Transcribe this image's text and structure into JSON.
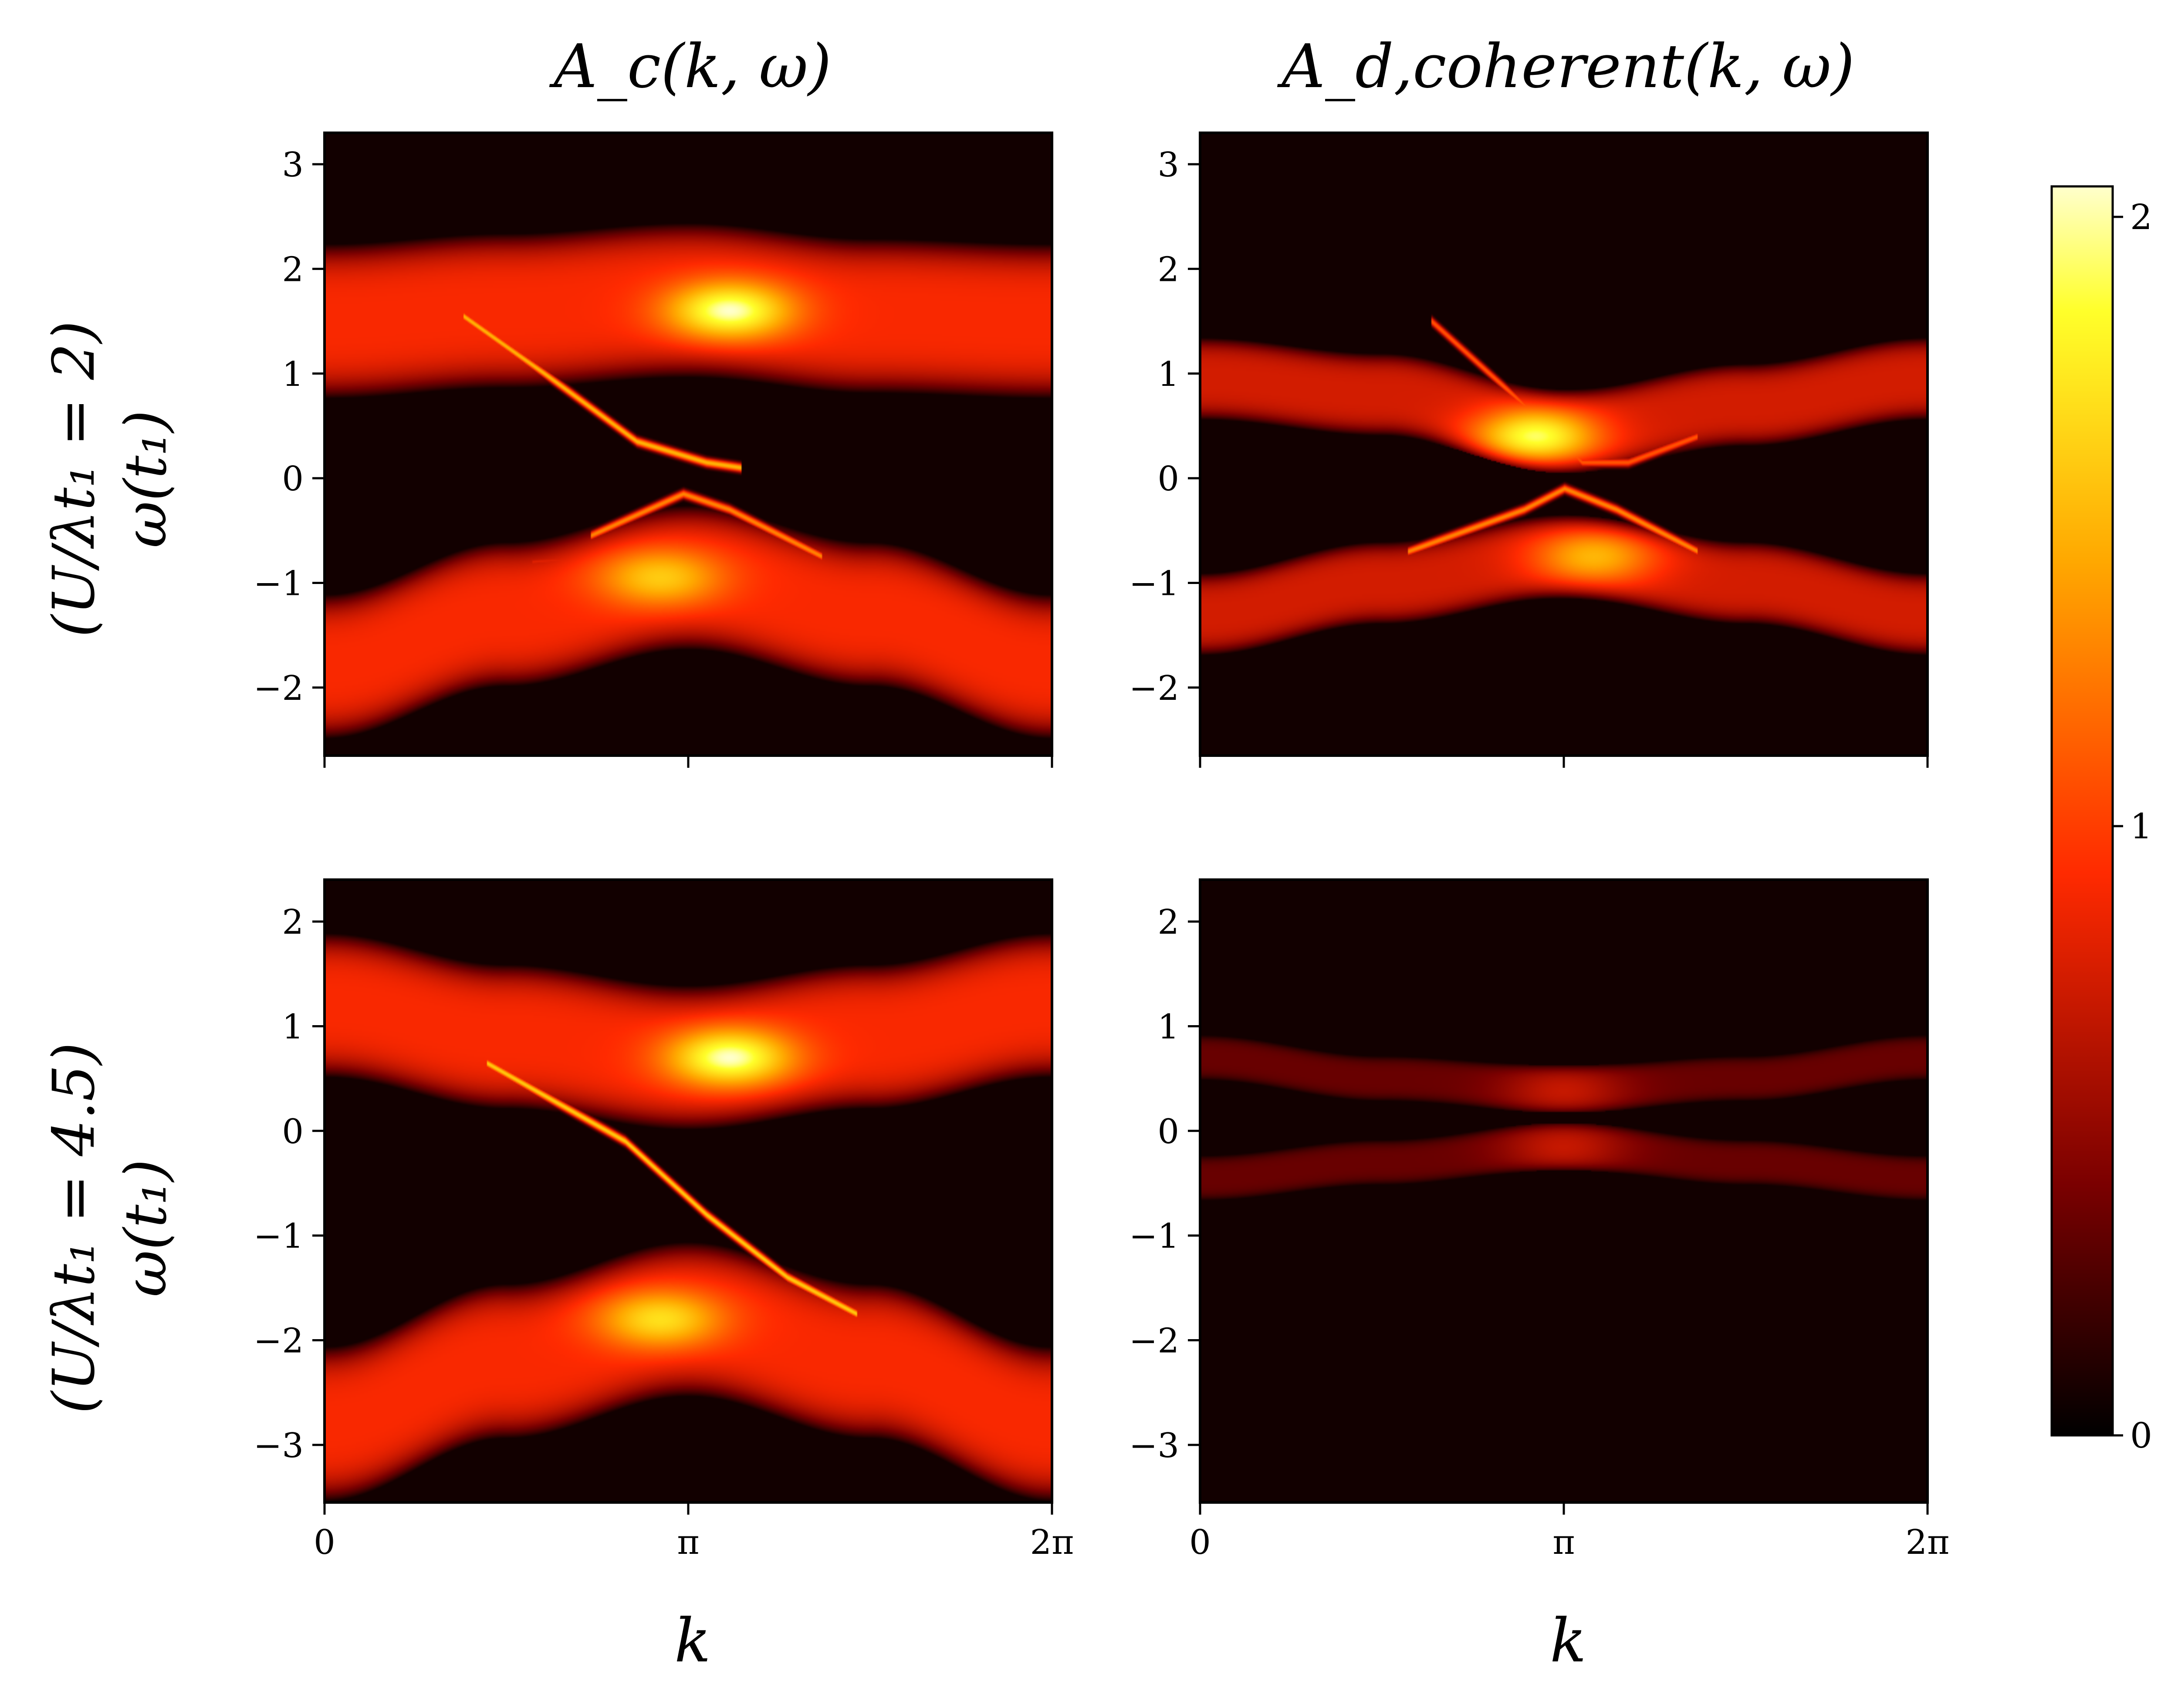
{
  "chart_data": {
    "type": "heatmap",
    "colormap": [
      "#000000",
      "#7a0000",
      "#ff2a00",
      "#ffa800",
      "#ffff2a",
      "#ffffff"
    ],
    "colorbar": {
      "range": [
        0,
        2.05
      ],
      "ticks": [
        {
          "value": 0,
          "label": "0"
        },
        {
          "value": 1,
          "label": "1"
        },
        {
          "value": 2,
          "label": "2"
        }
      ]
    },
    "x_axis": {
      "label": "k",
      "range": [
        0,
        6.2832
      ],
      "ticks": [
        {
          "value": 0,
          "label": "0"
        },
        {
          "value": 3.1416,
          "label": "π"
        },
        {
          "value": 6.2832,
          "label": "2π"
        }
      ]
    },
    "col_titles": [
      "A_c(k, ω)",
      "A_d,coherent(k, ω)"
    ],
    "row_labels": [
      {
        "top": "(U/λt₁ = 2)",
        "bottom": "ω(t₁)"
      },
      {
        "top": "(U/λt₁ = 4.5)",
        "bottom": "ω(t₁)"
      }
    ],
    "panels": [
      {
        "id": "c-u2",
        "row": 0,
        "col": 0,
        "ylim": [
          -2.65,
          3.3
        ],
        "yticks": [
          {
            "value": 3,
            "label": "3"
          },
          {
            "value": 2,
            "label": "2"
          },
          {
            "value": 1,
            "label": "1"
          },
          {
            "value": 0,
            "label": "0"
          },
          {
            "value": -1,
            "label": "−1"
          },
          {
            "value": -2,
            "label": "−2"
          }
        ],
        "bands": [
          {
            "kind": "broad",
            "center": [
              1.5,
              1.6,
              1.7,
              1.55,
              1.5
            ],
            "width": 1.5,
            "intensity": 0.9,
            "peak": {
              "k": 3.5,
              "omega": 1.6,
              "value": 2.0
            }
          },
          {
            "kind": "broad",
            "center": [
              -1.8,
              -1.3,
              -0.95,
              -1.3,
              -1.8
            ],
            "width": 1.4,
            "intensity": 0.9,
            "peak": {
              "k": 2.9,
              "omega": -0.95,
              "value": 1.6
            }
          },
          {
            "kind": "sharp",
            "points": [
              [
                1.2,
                1.55
              ],
              [
                1.9,
                1.0
              ],
              [
                2.7,
                0.35
              ],
              [
                3.3,
                0.15
              ],
              [
                3.6,
                0.1
              ]
            ],
            "value": 1.5
          },
          {
            "kind": "sharp",
            "points": [
              [
                2.3,
                -0.55
              ],
              [
                2.8,
                -0.3
              ],
              [
                3.1,
                -0.15
              ],
              [
                3.5,
                -0.3
              ],
              [
                4.3,
                -0.75
              ]
            ],
            "value": 1.3
          },
          {
            "kind": "sharp",
            "points": [
              [
                1.8,
                -0.8
              ],
              [
                3.1,
                -0.7
              ],
              [
                4.5,
                -0.9
              ]
            ],
            "value": 0.8
          }
        ]
      },
      {
        "id": "d-u2",
        "row": 0,
        "col": 1,
        "ylim": [
          -2.65,
          3.3
        ],
        "yticks": [
          {
            "value": 3,
            "label": "3"
          },
          {
            "value": 2,
            "label": "2"
          },
          {
            "value": 1,
            "label": "1"
          },
          {
            "value": 0,
            "label": "0"
          },
          {
            "value": -1,
            "label": "−1"
          },
          {
            "value": -2,
            "label": "−2"
          }
        ],
        "bands": [
          {
            "kind": "broad",
            "center": [
              0.95,
              0.8,
              0.45,
              0.7,
              0.95
            ],
            "width": 0.8,
            "intensity": 0.75,
            "peak": {
              "k": 2.9,
              "omega": 0.4,
              "value": 1.9
            }
          },
          {
            "kind": "broad",
            "center": [
              -1.3,
              -1.0,
              -0.75,
              -1.0,
              -1.3
            ],
            "width": 0.8,
            "intensity": 0.75,
            "peak": {
              "k": 3.4,
              "omega": -0.75,
              "value": 1.5
            }
          },
          {
            "kind": "sharp",
            "points": [
              [
                1.8,
                -0.7
              ],
              [
                2.8,
                -0.3
              ],
              [
                3.15,
                -0.1
              ],
              [
                3.6,
                -0.3
              ],
              [
                4.3,
                -0.7
              ]
            ],
            "value": 1.3
          },
          {
            "kind": "sharp",
            "points": [
              [
                2.0,
                1.5
              ],
              [
                2.8,
                0.7
              ],
              [
                3.3,
                0.15
              ],
              [
                3.7,
                0.15
              ],
              [
                4.3,
                0.4
              ]
            ],
            "value": 1.1
          }
        ]
      },
      {
        "id": "c-u45",
        "row": 1,
        "col": 0,
        "ylim": [
          -3.55,
          2.4
        ],
        "yticks": [
          {
            "value": 2,
            "label": "2"
          },
          {
            "value": 1,
            "label": "1"
          },
          {
            "value": 0,
            "label": "0"
          },
          {
            "value": -1,
            "label": "−1"
          },
          {
            "value": -2,
            "label": "−2"
          },
          {
            "value": -3,
            "label": "−3"
          }
        ],
        "bands": [
          {
            "kind": "broad",
            "center": [
              1.2,
              0.9,
              0.7,
              0.9,
              1.2
            ],
            "width": 1.4,
            "intensity": 0.9,
            "peak": {
              "k": 3.5,
              "omega": 0.7,
              "value": 2.0
            }
          },
          {
            "kind": "broad",
            "center": [
              -2.8,
              -2.2,
              -1.8,
              -2.2,
              -2.8
            ],
            "width": 1.5,
            "intensity": 0.9,
            "peak": {
              "k": 2.9,
              "omega": -1.8,
              "value": 1.7
            }
          },
          {
            "kind": "sharp",
            "points": [
              [
                1.4,
                0.65
              ],
              [
                2.6,
                -0.1
              ],
              [
                3.3,
                -0.8
              ],
              [
                4.0,
                -1.4
              ],
              [
                4.6,
                -1.75
              ]
            ],
            "value": 1.6
          }
        ]
      },
      {
        "id": "d-u45",
        "row": 1,
        "col": 1,
        "ylim": [
          -3.55,
          2.4
        ],
        "yticks": [
          {
            "value": 2,
            "label": "2"
          },
          {
            "value": 1,
            "label": "1"
          },
          {
            "value": 0,
            "label": "0"
          },
          {
            "value": -1,
            "label": "−1"
          },
          {
            "value": -2,
            "label": "−2"
          },
          {
            "value": -3,
            "label": "−3"
          }
        ],
        "bands": [
          {
            "kind": "broad",
            "center": [
              0.7,
              0.5,
              0.4,
              0.5,
              0.7
            ],
            "width": 0.45,
            "intensity": 0.35,
            "peak": {
              "k": 3.14,
              "omega": 0.38,
              "value": 0.7
            }
          },
          {
            "kind": "broad",
            "center": [
              -0.45,
              -0.3,
              -0.15,
              -0.3,
              -0.45
            ],
            "width": 0.45,
            "intensity": 0.35,
            "peak": {
              "k": 3.14,
              "omega": -0.15,
              "value": 0.7
            }
          }
        ]
      }
    ]
  }
}
